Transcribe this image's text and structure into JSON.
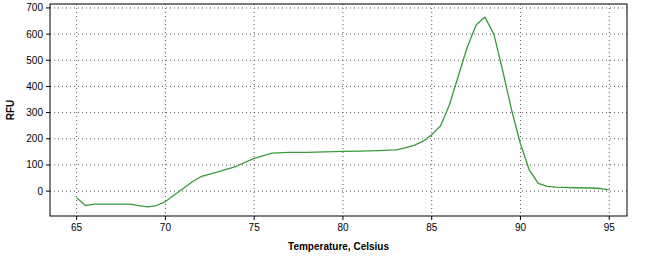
{
  "chart_data": {
    "type": "line",
    "x_label": "Temperature, Celsius",
    "y_label": "RFU",
    "x": [
      65,
      65.5,
      66,
      67,
      68,
      68.5,
      69,
      69.5,
      70,
      70.5,
      71,
      71.5,
      72,
      73,
      74,
      75,
      76,
      77,
      78,
      79,
      80,
      81,
      82,
      83,
      83.5,
      84,
      84.5,
      85,
      85.5,
      86,
      86.5,
      87,
      87.5,
      88,
      88.5,
      89,
      89.5,
      90,
      90.5,
      91,
      91.5,
      92,
      93,
      94,
      94.5,
      95
    ],
    "values": [
      -25,
      -55,
      -50,
      -50,
      -50,
      -55,
      -60,
      -55,
      -40,
      -15,
      10,
      35,
      55,
      75,
      95,
      125,
      145,
      148,
      148,
      150,
      152,
      153,
      155,
      158,
      165,
      175,
      190,
      215,
      250,
      330,
      440,
      550,
      635,
      665,
      600,
      460,
      310,
      180,
      80,
      30,
      18,
      15,
      13,
      12,
      10,
      5
    ],
    "color": "#3a9a3a",
    "xlim": [
      63.5,
      96
    ],
    "ylim": [
      -95,
      715
    ],
    "xticks": [
      65,
      70,
      75,
      80,
      85,
      90,
      95
    ],
    "yticks": [
      0,
      100,
      200,
      300,
      400,
      500,
      600,
      700
    ],
    "grid": true
  }
}
